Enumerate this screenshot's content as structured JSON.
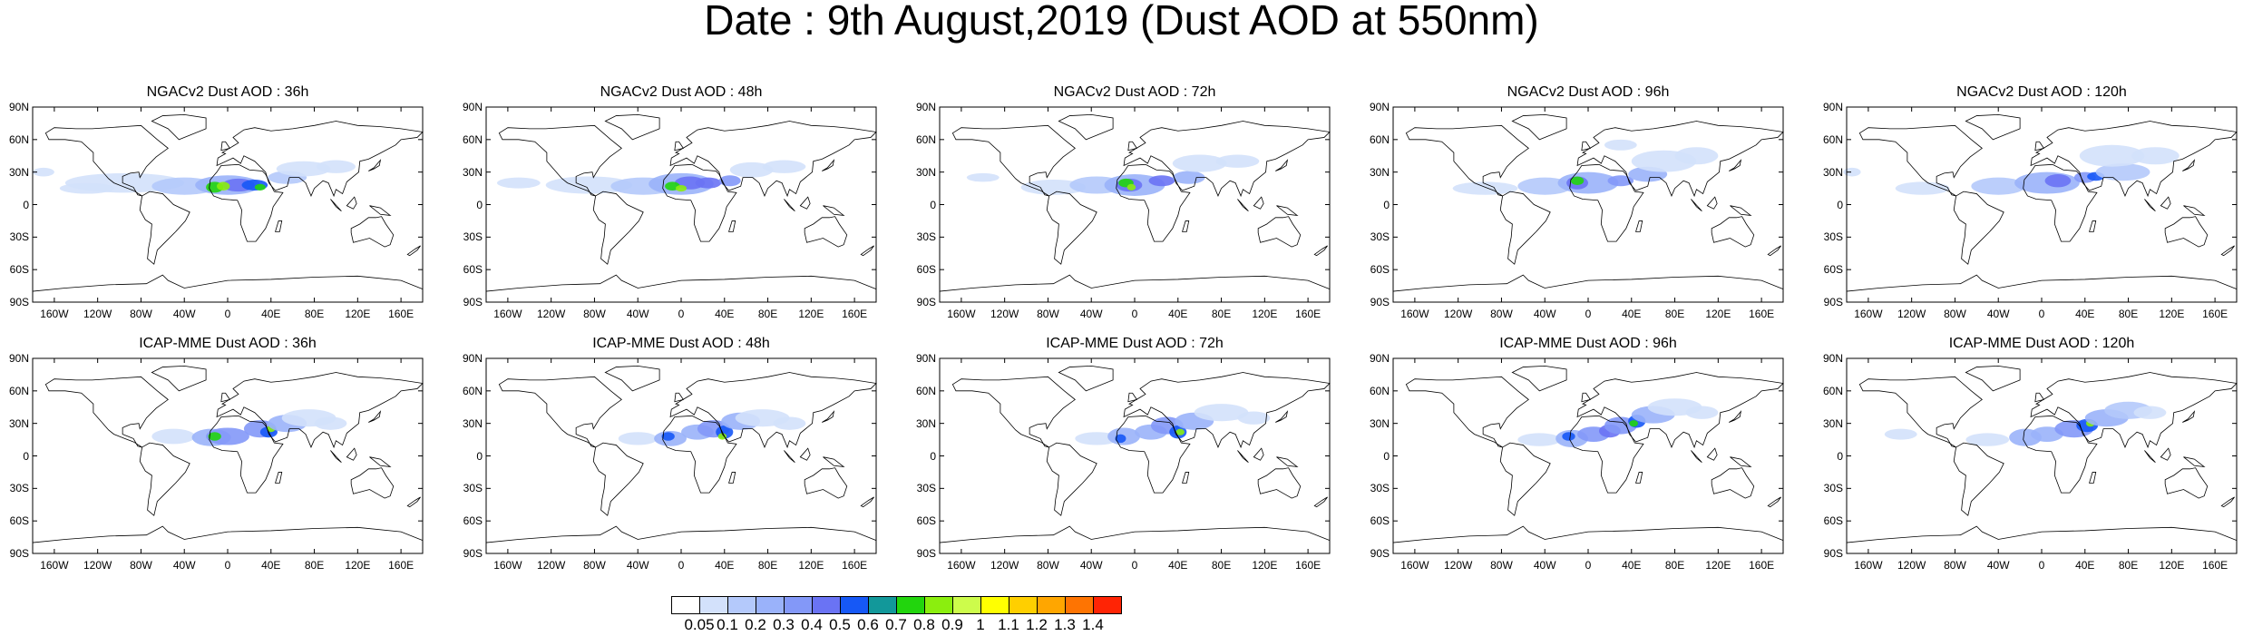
{
  "title": "Date : 9th August,2019 (Dust AOD at 550nm)",
  "panels": [
    {
      "title": "NGACv2 Dust AOD : 36h"
    },
    {
      "title": "NGACv2 Dust AOD : 48h"
    },
    {
      "title": "NGACv2 Dust AOD : 72h"
    },
    {
      "title": "NGACv2 Dust AOD : 96h"
    },
    {
      "title": "NGACv2 Dust AOD : 120h"
    },
    {
      "title": "ICAP-MME Dust AOD : 36h"
    },
    {
      "title": "ICAP-MME Dust AOD : 48h"
    },
    {
      "title": "ICAP-MME Dust AOD : 72h"
    },
    {
      "title": "ICAP-MME Dust AOD : 96h"
    },
    {
      "title": "ICAP-MME Dust AOD : 120h"
    }
  ],
  "lat_ticks": [
    "90N",
    "60N",
    "30N",
    "0",
    "30S",
    "60S",
    "90S"
  ],
  "lon_ticks": [
    "160W",
    "120W",
    "80W",
    "40W",
    "0",
    "40E",
    "80E",
    "120E",
    "160E"
  ],
  "colorbar": {
    "labels": [
      "0.05",
      "0.1",
      "0.2",
      "0.3",
      "0.4",
      "0.5",
      "0.6",
      "0.7",
      "0.8",
      "0.9",
      "1",
      "1.1",
      "1.2",
      "1.3",
      "1.4"
    ],
    "colors": [
      "#ffffff",
      "#d3e1fb",
      "#b4c9fb",
      "#9ab2fa",
      "#8398f8",
      "#6a73f4",
      "#1658f6",
      "#12989a",
      "#22d50d",
      "#8bee0e",
      "#cdfc4b",
      "#ffff01",
      "#ffcf00",
      "#ffa600",
      "#fe7402",
      "#ff2405"
    ]
  }
}
